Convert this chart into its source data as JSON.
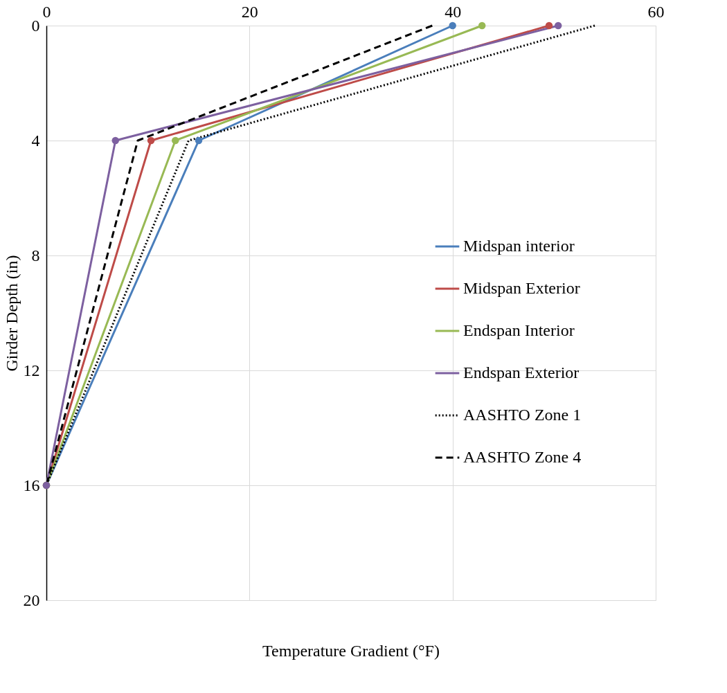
{
  "chart_data": {
    "type": "line",
    "xlabel": "Temperature Gradient (°F)",
    "ylabel": "Girder Depth (in)",
    "xlim": [
      0,
      60
    ],
    "xticks": [
      0,
      20,
      40,
      60
    ],
    "ylim": [
      20,
      0
    ],
    "yticks": [
      0,
      4,
      8,
      12,
      16,
      20
    ],
    "grid": true,
    "legend": "right",
    "series": [
      {
        "name": "Midspan interior",
        "color": "#4a7ebb",
        "x": [
          40,
          15,
          0
        ],
        "values": [
          0,
          4,
          16
        ],
        "marker": "circle",
        "line_style": "solid"
      },
      {
        "name": "Midspan Exterior",
        "color": "#be4b48",
        "x": [
          49.5,
          10.3,
          0
        ],
        "values": [
          0,
          4,
          16
        ],
        "marker": "circle",
        "line_style": "solid"
      },
      {
        "name": "Endspan Interior",
        "color": "#98b954",
        "x": [
          42.9,
          12.7,
          0
        ],
        "values": [
          0,
          4,
          16
        ],
        "marker": "circle",
        "line_style": "solid"
      },
      {
        "name": "Endspan Exterior",
        "color": "#7d60a0",
        "x": [
          50.4,
          6.8,
          0
        ],
        "values": [
          0,
          4,
          16
        ],
        "marker": "circle",
        "line_style": "solid"
      },
      {
        "name": "AASHTO Zone 1",
        "color": "#000000",
        "x": [
          54,
          14,
          0
        ],
        "values": [
          0,
          4,
          16
        ],
        "marker": "none",
        "line_style": "dotted"
      },
      {
        "name": "AASHTO Zone 4",
        "color": "#000000",
        "x": [
          38,
          9,
          0
        ],
        "values": [
          0,
          4,
          16
        ],
        "marker": "none",
        "line_style": "dashed"
      }
    ]
  }
}
